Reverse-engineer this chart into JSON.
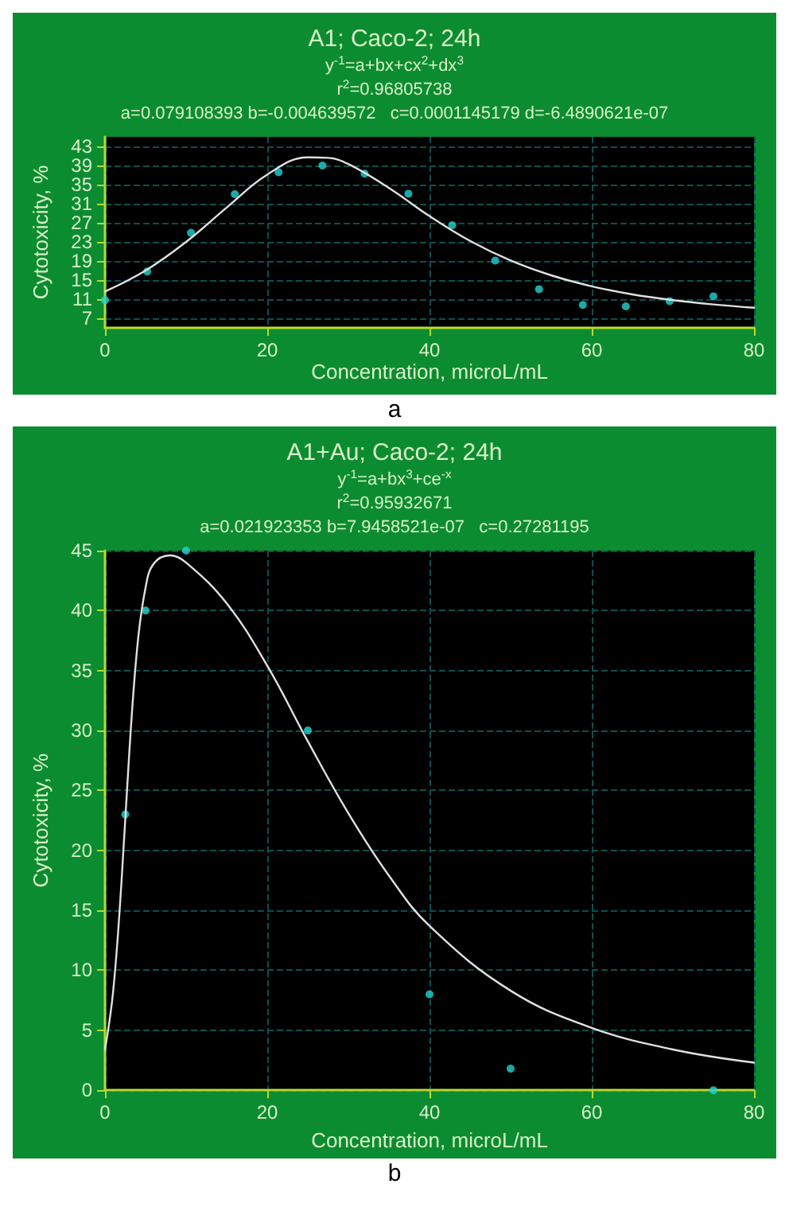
{
  "chart_data": [
    {
      "type": "scatter",
      "title": "A1; Caco-2; 24h",
      "subtitle": "y$^{-1}$=a+bx+cx$^{2}$+dx$^{3}$\nr$^{2}$=0.96805738\na=0.079108393 b=-0.004639572   c=0.0001145179 d=-6.4890621e-07",
      "xlabel": "Concentration, microL/mL",
      "ylabel": "Cytotoxicity, %",
      "annotations": [
        "a"
      ],
      "xlim": [
        0,
        80
      ],
      "xticks": [
        0,
        20,
        40,
        60,
        80
      ],
      "ylim": [
        5,
        45
      ],
      "yticks": [
        7,
        11,
        15,
        19,
        23,
        27,
        31,
        35,
        39,
        43
      ],
      "grid": true,
      "marker": "circle",
      "series": [
        {
          "color": "#22d3d3",
          "x": [
            0,
            5.2,
            10.6,
            16,
            21.4,
            26.8,
            32,
            37.4,
            42.8,
            48.1,
            53.5,
            58.9,
            64.2,
            69.6,
            75
          ],
          "values": [
            10.8,
            16.8,
            24.9,
            33,
            37.6,
            39,
            37.3,
            33.1,
            26.5,
            19.1,
            13.1,
            9.8,
            9.5,
            10.6,
            11.6
          ]
        },
        {
          "type": "line",
          "color": "#e0e0e0",
          "marker": "none",
          "line_style": "solid",
          "x": [
            0,
            5,
            10,
            15,
            20,
            25,
            27.5,
            30,
            35,
            40,
            45,
            50,
            55,
            60,
            65,
            70,
            75,
            80
          ],
          "values": [
            12.6,
            17,
            23,
            30.2,
            37.1,
            40.7,
            40.6,
            39.3,
            34.3,
            28.4,
            23.2,
            19.1,
            16,
            13.7,
            12,
            10.8,
            9.9,
            9.2
          ]
        }
      ]
    },
    {
      "type": "scatter",
      "title": "A1+Au; Caco-2; 24h",
      "subtitle": "y$^{-1}$=a+bx$^{3}$+ce$^{-x}$\nr$^{2}$=0.95932671\na=0.021923353 b=7.9458521e-07   c=0.27281195",
      "xlabel": "Concentration, microL/mL",
      "ylabel": "Cytotoxicity, %",
      "annotations": [
        "b"
      ],
      "xlim": [
        0,
        80
      ],
      "xticks": [
        0,
        20,
        40,
        60,
        80
      ],
      "ylim": [
        0,
        45
      ],
      "yticks": [
        0,
        5,
        10,
        15,
        20,
        25,
        30,
        35,
        40,
        45
      ],
      "grid": true,
      "marker": "circle",
      "series": [
        {
          "color": "#22d3d3",
          "x": [
            2.5,
            5,
            10,
            25,
            40,
            50,
            75
          ],
          "values": [
            23,
            40,
            45,
            30,
            8,
            1.8,
            0
          ]
        },
        {
          "type": "line",
          "color": "#e0e0e0",
          "marker": "none",
          "line_style": "solid",
          "x": [
            0,
            1,
            2,
            3,
            4,
            5,
            6,
            8,
            10,
            15,
            20,
            25,
            30,
            35,
            40,
            50,
            60,
            70,
            80
          ],
          "values": [
            3.4,
            8.2,
            17,
            28.2,
            37.1,
            41.9,
            43.9,
            44.6,
            44,
            40.6,
            35.4,
            29.1,
            23.1,
            17.9,
            13.7,
            8.3,
            5.2,
            3.4,
            2.3
          ]
        }
      ]
    }
  ]
}
